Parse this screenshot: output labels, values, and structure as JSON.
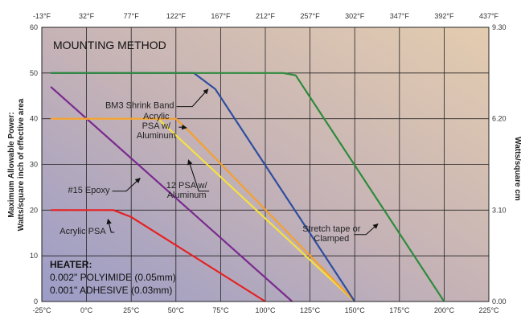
{
  "chart_data": {
    "type": "line",
    "panel_title": "MOUNTING METHOD",
    "ylabel_left_1": "Maximum Allowable Power:",
    "ylabel_left_2": "Watts/square inch of effective area",
    "ylabel_right": "Watts/square cm",
    "x_ticks_bottom": [
      "-25°C",
      "0°C",
      "25°C",
      "50°C",
      "75°C",
      "100°C",
      "125°C",
      "150°C",
      "175°C",
      "200°C",
      "225°C"
    ],
    "x_ticks_top": [
      "-13°F",
      "32°F",
      "77°F",
      "122°F",
      "167°F",
      "212°F",
      "257°F",
      "302°F",
      "347°F",
      "392°F",
      "437°F"
    ],
    "y_ticks_left": [
      "0",
      "10",
      "20",
      "30",
      "40",
      "50",
      "60"
    ],
    "y_ticks_right": [
      {
        "label": "0.00",
        "y": 0
      },
      {
        "label": "3.10",
        "y": 20
      },
      {
        "label": "6.20",
        "y": 40
      },
      {
        "label": "9.30",
        "y": 60
      }
    ],
    "xlim": [
      -25,
      225
    ],
    "ylim": [
      0,
      60
    ],
    "series": [
      {
        "color": "#e62020",
        "points": [
          [
            -20,
            20
          ],
          [
            15,
            20
          ],
          [
            25,
            18.5
          ],
          [
            100,
            0
          ]
        ]
      },
      {
        "color": "#7a2a8e",
        "points": [
          [
            -20,
            47
          ],
          [
            115,
            0
          ]
        ]
      },
      {
        "color": "#f6e040",
        "points": [
          [
            -20,
            40
          ],
          [
            40,
            40
          ],
          [
            150,
            0
          ]
        ]
      },
      {
        "color": "#f5a030",
        "points": [
          [
            -20,
            40
          ],
          [
            50,
            40
          ],
          [
            58,
            37
          ],
          [
            150,
            0
          ]
        ]
      },
      {
        "color": "#2e4e9e",
        "points": [
          [
            -20,
            50
          ],
          [
            60,
            50
          ],
          [
            72,
            46.5
          ],
          [
            150,
            0
          ]
        ]
      },
      {
        "color": "#2e8b3c",
        "points": [
          [
            -20,
            50
          ],
          [
            110,
            50
          ],
          [
            117,
            49.5
          ],
          [
            200,
            0
          ]
        ]
      }
    ],
    "annotations": [
      {
        "lines": [
          "BM3 Shrink Band"
        ],
        "x": 49,
        "y": 43,
        "anchor": "end",
        "arrow_to": [
          68,
          46.5
        ]
      },
      {
        "lines": [
          "Acrylic",
          "PSA w/",
          "Aluminum"
        ],
        "x": 39,
        "y": 38.5,
        "anchor": "middle",
        "arrow_to": [
          56,
          38
        ]
      },
      {
        "lines": [
          "12 PSA w/",
          "Aluminum"
        ],
        "x": 56,
        "y": 24.5,
        "anchor": "middle",
        "arrow_to": [
          57,
          31
        ]
      },
      {
        "lines": [
          "#15 Epoxy"
        ],
        "x": 13,
        "y": 24.5,
        "anchor": "end",
        "arrow_to": [
          30,
          27
        ]
      },
      {
        "lines": [
          "Acrylic PSA"
        ],
        "x": -15,
        "y": 15.5,
        "anchor": "start",
        "arrow_to": [
          12,
          18
        ]
      },
      {
        "lines": [
          "Stretch tape or",
          "Clamped"
        ],
        "x": 137,
        "y": 15,
        "anchor": "middle",
        "arrow_to": [
          163,
          17
        ]
      }
    ],
    "heater": {
      "title": "HEATER:",
      "line1": "0.002\" POLYIMIDE (0.05mm)",
      "line2": "0.001\" ADHESIVE (0.03mm)"
    }
  }
}
